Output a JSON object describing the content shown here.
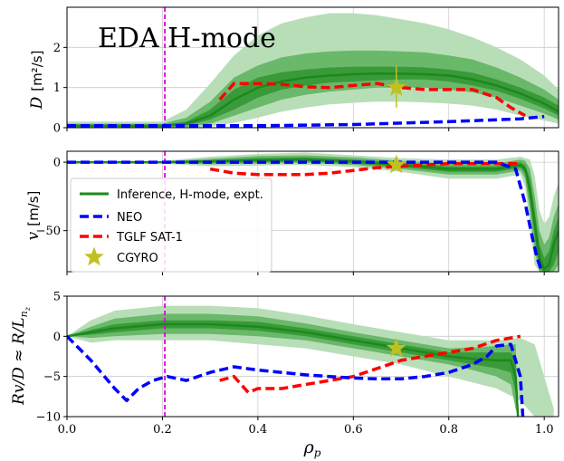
{
  "chart_data": [
    {
      "type": "line",
      "panel": "top",
      "ylabel_var": "D",
      "ylabel_unit": "[m²/s]",
      "annotation": "EDA H-mode",
      "xlim": [
        0.0,
        1.03
      ],
      "ylim": [
        0.0,
        3.0
      ],
      "yticks": [
        "0",
        "1",
        "2"
      ],
      "vline_x": 0.205,
      "inference": {
        "x": [
          0.0,
          0.2,
          0.25,
          0.3,
          0.35,
          0.4,
          0.45,
          0.5,
          0.55,
          0.6,
          0.65,
          0.7,
          0.75,
          0.8,
          0.85,
          0.9,
          0.95,
          1.0,
          1.03
        ],
        "median": [
          0.05,
          0.05,
          0.1,
          0.3,
          0.7,
          1.0,
          1.15,
          1.25,
          1.3,
          1.33,
          1.35,
          1.35,
          1.33,
          1.3,
          1.2,
          1.05,
          0.85,
          0.6,
          0.4
        ],
        "band1_lo": [
          0.03,
          0.03,
          0.05,
          0.2,
          0.45,
          0.75,
          0.95,
          1.05,
          1.12,
          1.15,
          1.18,
          1.2,
          1.2,
          1.15,
          1.05,
          0.92,
          0.72,
          0.48,
          0.3
        ],
        "band1_hi": [
          0.07,
          0.07,
          0.15,
          0.45,
          0.95,
          1.25,
          1.38,
          1.45,
          1.5,
          1.52,
          1.52,
          1.52,
          1.5,
          1.45,
          1.37,
          1.2,
          1.0,
          0.75,
          0.55
        ],
        "band2_lo": [
          0.01,
          0.01,
          0.02,
          0.1,
          0.3,
          0.5,
          0.7,
          0.82,
          0.9,
          0.95,
          1.0,
          1.0,
          1.0,
          0.95,
          0.88,
          0.75,
          0.55,
          0.35,
          0.2
        ],
        "band2_hi": [
          0.1,
          0.1,
          0.25,
          0.65,
          1.25,
          1.55,
          1.75,
          1.85,
          1.9,
          1.92,
          1.92,
          1.9,
          1.88,
          1.8,
          1.7,
          1.5,
          1.25,
          0.95,
          0.7
        ],
        "band3_lo": [
          0.0,
          0.0,
          0.0,
          0.03,
          0.12,
          0.25,
          0.4,
          0.5,
          0.58,
          0.62,
          0.65,
          0.65,
          0.63,
          0.6,
          0.55,
          0.45,
          0.3,
          0.18,
          0.1
        ],
        "band3_hi": [
          0.15,
          0.15,
          0.45,
          1.1,
          1.8,
          2.3,
          2.6,
          2.75,
          2.85,
          2.85,
          2.8,
          2.7,
          2.6,
          2.45,
          2.25,
          2.0,
          1.7,
          1.3,
          0.95
        ]
      },
      "neo": {
        "x": [
          0.0,
          0.2,
          0.4,
          0.6,
          0.8,
          0.95,
          1.0
        ],
        "y": [
          0.05,
          0.05,
          0.05,
          0.08,
          0.15,
          0.22,
          0.28
        ]
      },
      "tglf": {
        "x": [
          0.32,
          0.35,
          0.4,
          0.45,
          0.5,
          0.55,
          0.6,
          0.65,
          0.7,
          0.75,
          0.8,
          0.85,
          0.9,
          0.93,
          0.96
        ],
        "y": [
          0.7,
          1.1,
          1.1,
          1.08,
          1.02,
          1.0,
          1.05,
          1.1,
          1.0,
          0.95,
          0.95,
          0.95,
          0.75,
          0.5,
          0.3
        ]
      },
      "cgyro": {
        "x": 0.69,
        "y": 1.0,
        "err_lo": 0.5,
        "err_hi": 1.55
      }
    },
    {
      "type": "line",
      "panel": "middle",
      "ylabel_var": "v",
      "ylabel_unit": "[m/s]",
      "xlim": [
        0.0,
        1.03
      ],
      "ylim": [
        -80,
        8
      ],
      "yticks": [
        "0",
        "−50"
      ],
      "vline_x": 0.205,
      "inference": {
        "x": [
          0.0,
          0.2,
          0.3,
          0.4,
          0.5,
          0.6,
          0.7,
          0.8,
          0.9,
          0.95,
          0.96,
          0.97,
          0.98,
          0.99,
          1.0,
          1.01,
          1.02,
          1.03
        ],
        "median": [
          0.0,
          0.0,
          0.5,
          1.5,
          2.0,
          0.5,
          -2.0,
          -5.0,
          -5.0,
          -2.0,
          -5.0,
          -20.0,
          -45.0,
          -70.0,
          -78.0,
          -75.0,
          -60.0,
          -50.0
        ],
        "band1_lo": [
          -0.3,
          -0.3,
          -0.5,
          0.0,
          0.5,
          -1.0,
          -3.5,
          -7.0,
          -7.0,
          -4.0,
          -8.0,
          -28.0,
          -55.0,
          -78.0,
          -80.0,
          -80.0,
          -75.0,
          -65.0
        ],
        "band1_hi": [
          0.3,
          0.3,
          1.5,
          3.0,
          3.5,
          2.0,
          -0.5,
          -3.0,
          -3.0,
          0.0,
          -2.0,
          -12.0,
          -35.0,
          -60.0,
          -70.0,
          -65.0,
          -50.0,
          -40.0
        ],
        "band2_lo": [
          -0.6,
          -0.6,
          -1.5,
          -1.0,
          -0.5,
          -2.0,
          -5.0,
          -9.0,
          -9.0,
          -6.0,
          -12.0,
          -36.0,
          -65.0,
          -80.0,
          -80.0,
          -80.0,
          -80.0,
          -75.0
        ],
        "band2_hi": [
          0.6,
          0.6,
          2.5,
          4.5,
          5.0,
          3.5,
          1.0,
          -1.0,
          -1.0,
          2.0,
          1.0,
          -5.0,
          -25.0,
          -50.0,
          -60.0,
          -55.0,
          -40.0,
          -30.0
        ],
        "band3_lo": [
          -1.0,
          -1.0,
          -3.0,
          -2.5,
          -2.0,
          -3.5,
          -7.0,
          -12.0,
          -12.0,
          -9.0,
          -18.0,
          -45.0,
          -75.0,
          -80.0,
          -80.0,
          -80.0,
          -80.0,
          -80.0
        ],
        "band3_hi": [
          1.0,
          1.0,
          4.0,
          6.0,
          7.0,
          5.0,
          3.0,
          2.0,
          2.0,
          4.0,
          3.0,
          2.0,
          -10.0,
          -35.0,
          -45.0,
          -40.0,
          -25.0,
          -15.0
        ]
      },
      "neo": {
        "x": [
          0.0,
          0.2,
          0.4,
          0.6,
          0.8,
          0.9,
          0.94,
          0.96,
          0.975,
          0.985,
          0.995
        ],
        "y": [
          0.0,
          0.0,
          0.0,
          0.0,
          0.0,
          0.0,
          -5.0,
          -30.0,
          -55.0,
          -70.0,
          -80.0
        ]
      },
      "tglf": {
        "x": [
          0.3,
          0.35,
          0.4,
          0.45,
          0.5,
          0.55,
          0.6,
          0.65,
          0.7,
          0.75,
          0.8,
          0.85,
          0.9,
          0.95
        ],
        "y": [
          -5.0,
          -8.0,
          -9.0,
          -9.0,
          -9.0,
          -8.0,
          -6.0,
          -4.0,
          -3.0,
          -2.0,
          -1.0,
          -1.0,
          -1.0,
          -1.0
        ]
      },
      "cgyro": {
        "x": 0.69,
        "y": -2.0
      },
      "legend": {
        "position": "lower-left",
        "items": [
          "Inference, H-mode, expt.",
          "NEO",
          "TGLF SAT-1",
          "CGYRO"
        ]
      }
    },
    {
      "type": "line",
      "panel": "bottom",
      "ylabel": "Rv/D ≈ R/L",
      "ylabel_sub": "n",
      "ylabel_subsub": "z",
      "xlabel_var": "ρ",
      "xlabel_sub": "p",
      "xlim": [
        0.0,
        1.03
      ],
      "ylim": [
        -10,
        5
      ],
      "yticks": [
        "5",
        "0",
        "−5",
        "−10"
      ],
      "xticks": [
        "0.0",
        "0.2",
        "0.4",
        "0.6",
        "0.8",
        "1.0"
      ],
      "vline_x": 0.205,
      "inference": {
        "x": [
          0.0,
          0.05,
          0.1,
          0.2,
          0.3,
          0.4,
          0.5,
          0.6,
          0.7,
          0.8,
          0.85,
          0.9,
          0.93,
          0.94,
          0.945
        ],
        "median": [
          0.0,
          0.5,
          1.0,
          1.5,
          1.5,
          1.2,
          0.5,
          -0.5,
          -1.5,
          -2.5,
          -2.8,
          -3.0,
          -3.0,
          -5.0,
          -10.0
        ],
        "band1_lo": [
          0.0,
          0.2,
          0.5,
          1.0,
          1.0,
          0.7,
          0.0,
          -1.0,
          -2.0,
          -3.0,
          -3.5,
          -4.0,
          -4.5,
          -7.0,
          -10.0
        ],
        "band1_hi": [
          0.0,
          0.8,
          1.5,
          2.0,
          2.0,
          1.8,
          1.0,
          0.0,
          -1.0,
          -2.0,
          -2.0,
          -2.0,
          -2.0,
          -3.0,
          -10.0
        ],
        "band2_lo": [
          0.0,
          -0.2,
          0.0,
          0.3,
          0.3,
          0.0,
          -0.5,
          -1.5,
          -2.5,
          -3.5,
          -4.2,
          -5.0,
          -6.0,
          -9.0,
          -10.0
        ],
        "band2_hi": [
          0.0,
          1.2,
          2.2,
          2.8,
          2.8,
          2.5,
          1.6,
          0.5,
          -0.5,
          -1.5,
          -1.4,
          -1.2,
          -1.0,
          -1.0,
          -10.0
        ]
      },
      "band3_outer": {
        "x": [
          0.0,
          0.05,
          0.1,
          0.2,
          0.3,
          0.4,
          0.5,
          0.6,
          0.7,
          0.8,
          0.9,
          0.95,
          0.98,
          1.0,
          1.02
        ],
        "lo": [
          0.0,
          -0.8,
          -0.5,
          -0.5,
          -0.5,
          -1.0,
          -1.5,
          -2.5,
          -3.5,
          -5.0,
          -6.5,
          -8.0,
          -10.0,
          -10.0,
          -10.0
        ],
        "hi": [
          0.0,
          2.0,
          3.2,
          3.8,
          3.8,
          3.5,
          2.6,
          1.5,
          0.5,
          -0.5,
          -0.5,
          -0.2,
          -1.0,
          -5.0,
          -9.0
        ]
      },
      "neo": {
        "x": [
          0.0,
          0.05,
          0.1,
          0.125,
          0.15,
          0.18,
          0.21,
          0.25,
          0.3,
          0.35,
          0.4,
          0.45,
          0.5,
          0.55,
          0.6,
          0.65,
          0.7,
          0.75,
          0.8,
          0.85,
          0.88,
          0.9,
          0.93,
          0.95,
          0.955
        ],
        "y": [
          0.0,
          -3.0,
          -6.5,
          -8.0,
          -6.5,
          -5.5,
          -5.0,
          -5.5,
          -4.5,
          -3.8,
          -4.2,
          -4.5,
          -4.8,
          -5.0,
          -5.2,
          -5.3,
          -5.3,
          -5.0,
          -4.5,
          -3.5,
          -2.5,
          -1.2,
          -1.0,
          -5.0,
          -10.0
        ]
      },
      "tglf": {
        "x": [
          0.32,
          0.35,
          0.38,
          0.4,
          0.45,
          0.5,
          0.55,
          0.6,
          0.65,
          0.7,
          0.75,
          0.8,
          0.85,
          0.9,
          0.95
        ],
        "y": [
          -5.5,
          -5.0,
          -7.0,
          -6.5,
          -6.5,
          -6.0,
          -5.5,
          -5.0,
          -4.0,
          -3.0,
          -2.5,
          -2.0,
          -1.5,
          -0.5,
          0.0
        ]
      },
      "cgyro": {
        "x": 0.69,
        "y": -1.5
      }
    }
  ],
  "colors": {
    "green_dark": "#1a8a1a",
    "band1": "#3a9a3a",
    "band2": "#6ab86a",
    "band3": "#b8deb8",
    "neo": "#0000ff",
    "tglf": "#ff0000",
    "cgyro": "#c0c020",
    "vline": "#e000e0",
    "grid": "#cccccc"
  }
}
